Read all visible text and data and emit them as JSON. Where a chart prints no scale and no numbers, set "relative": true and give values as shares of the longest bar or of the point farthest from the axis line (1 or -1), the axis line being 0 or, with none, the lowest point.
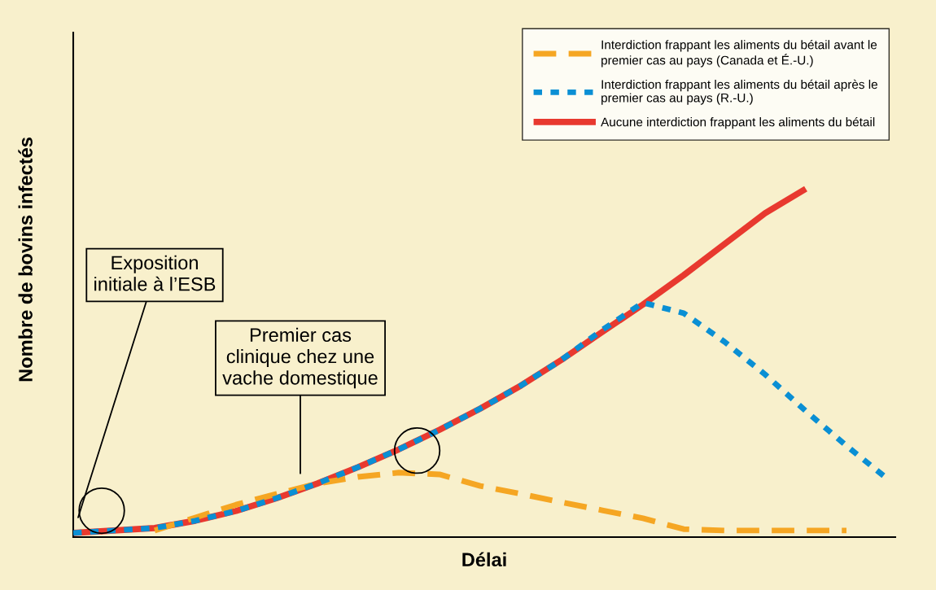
{
  "chart_data": {
    "type": "line",
    "relative": true,
    "xlabel": "Délai",
    "ylabel": "Nombre de bovins infectés",
    "categories": [
      null,
      null,
      null,
      null,
      null,
      null,
      null,
      null,
      null,
      null,
      null,
      null,
      null,
      null,
      null,
      null,
      null,
      null,
      null,
      null,
      null
    ],
    "series": [
      {
        "name": "Interdiction frappant les aliments du bétail avant le\npremier cas au pays (Canada et É.-U.)",
        "color": "#f5a623",
        "line_style": "dashed",
        "values": [
          null,
          null,
          0.019,
          0.056,
          0.093,
          0.124,
          0.154,
          0.173,
          0.185,
          0.18,
          0.147,
          0.124,
          0.1,
          0.077,
          0.054,
          0.023,
          0.019,
          0.019,
          0.019,
          0.019,
          null
        ]
      },
      {
        "name": "Interdiction frappant les aliments du bétail après le\npremier cas au pays (R.-U.)",
        "color": "#0a8fd4",
        "line_style": "dotted",
        "values": [
          0.012,
          0.019,
          0.026,
          0.047,
          0.075,
          0.112,
          0.154,
          0.201,
          0.252,
          0.308,
          0.369,
          0.435,
          0.509,
          0.595,
          0.673,
          0.643,
          0.561,
          0.467,
          0.362,
          0.262,
          0.168
        ]
      },
      {
        "name": "Aucune interdiction frappant les aliments du bétail",
        "color": "#e8392f",
        "line_style": "solid",
        "values": [
          0.012,
          0.019,
          0.026,
          0.047,
          0.075,
          0.112,
          0.154,
          0.201,
          0.252,
          0.308,
          0.369,
          0.435,
          0.509,
          0.589,
          0.668,
          0.752,
          0.841,
          0.93,
          1.0,
          null,
          null
        ]
      }
    ],
    "legend": "top right",
    "grid": false,
    "annotations": [
      "Exposition\ninitiale à l’ESB",
      "Premier cas\nclinique chez une\nvache domestique"
    ]
  }
}
